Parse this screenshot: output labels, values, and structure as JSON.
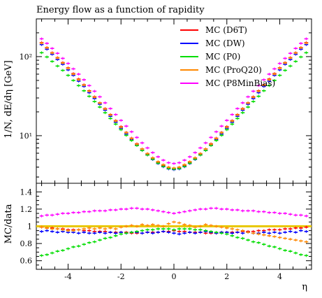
{
  "chart_data": {
    "type": "scatter",
    "title": "Energy flow as a function of rapidity",
    "xlabel": "η",
    "ylabel_top": "1/N, dE/dη [GeV]",
    "ylabel_bottom": "MC/data",
    "xlim": [
      -5.2,
      5.2
    ],
    "ylim_top": [
      2.5,
      300
    ],
    "yscale_top": "log",
    "ylim_bottom": [
      0.5,
      1.5
    ],
    "x_ticks": [
      -4,
      -2,
      0,
      2,
      4
    ],
    "x_tick_labels": [
      "-4",
      "-2",
      "0",
      "2",
      "4"
    ],
    "y_ticks_top": [
      10,
      100
    ],
    "y_tick_labels_top": [
      "10¹",
      "10²"
    ],
    "y_ticks_bottom": [
      0.6,
      0.8,
      1.0,
      1.2,
      1.4
    ],
    "y_tick_labels_bottom": [
      "0.6",
      "0.8",
      "1",
      "1.2",
      "1.4"
    ],
    "reference_line": 1.0,
    "bin_width": 0.2,
    "legend_position": "top-right",
    "series": [
      {
        "name": "MC (D6T)",
        "color": "#ff0000",
        "x": [
          -5.0,
          -4.8,
          -4.6,
          -4.4,
          -4.2,
          -4.0,
          -3.8,
          -3.6,
          -3.4,
          -3.2,
          -3.0,
          -2.8,
          -2.6,
          -2.4,
          -2.2,
          -2.0,
          -1.8,
          -1.6,
          -1.4,
          -1.2,
          -1.0,
          -0.8,
          -0.6,
          -0.4,
          -0.2,
          0.0,
          0.2,
          0.4,
          0.6,
          0.8,
          1.0,
          1.2,
          1.4,
          1.6,
          1.8,
          2.0,
          2.2,
          2.4,
          2.6,
          2.8,
          3.0,
          3.2,
          3.4,
          3.6,
          3.8,
          4.0,
          4.2,
          4.4,
          4.6,
          4.8,
          5.0
        ],
        "y": [
          150,
          130,
          112,
          97,
          84,
          72,
          61,
          52,
          44,
          37,
          31,
          26,
          22,
          18.5,
          15.5,
          13,
          11,
          9.3,
          7.9,
          6.8,
          5.9,
          5.2,
          4.6,
          4.2,
          3.95,
          3.85,
          3.95,
          4.2,
          4.6,
          5.2,
          5.9,
          6.8,
          7.9,
          9.3,
          11,
          13,
          15.5,
          18.5,
          22,
          26,
          31,
          37,
          44,
          52,
          61,
          72,
          84,
          97,
          112,
          130,
          150
        ],
        "ratio": [
          0.99,
          0.98,
          0.98,
          0.97,
          0.97,
          0.96,
          0.96,
          0.96,
          0.95,
          0.95,
          0.94,
          0.94,
          0.94,
          0.93,
          0.93,
          0.93,
          0.93,
          0.92,
          0.92,
          0.92,
          0.93,
          0.93,
          0.93,
          0.94,
          0.94,
          0.95,
          0.94,
          0.94,
          0.93,
          0.93,
          0.93,
          0.92,
          0.92,
          0.92,
          0.93,
          0.93,
          0.93,
          0.93,
          0.94,
          0.94,
          0.94,
          0.95,
          0.95,
          0.96,
          0.96,
          0.96,
          0.97,
          0.97,
          0.98,
          0.98,
          0.99
        ]
      },
      {
        "name": "MC (DW)",
        "color": "#0000ff",
        "x": [
          -5.0,
          -4.8,
          -4.6,
          -4.4,
          -4.2,
          -4.0,
          -3.8,
          -3.6,
          -3.4,
          -3.2,
          -3.0,
          -2.8,
          -2.6,
          -2.4,
          -2.2,
          -2.0,
          -1.8,
          -1.6,
          -1.4,
          -1.2,
          -1.0,
          -0.8,
          -0.6,
          -0.4,
          -0.2,
          0.0,
          0.2,
          0.4,
          0.6,
          0.8,
          1.0,
          1.2,
          1.4,
          1.6,
          1.8,
          2.0,
          2.2,
          2.4,
          2.6,
          2.8,
          3.0,
          3.2,
          3.4,
          3.6,
          3.8,
          4.0,
          4.2,
          4.4,
          4.6,
          4.8,
          5.0
        ],
        "y": [
          142,
          124,
          107,
          92,
          80,
          68,
          58,
          49,
          42,
          35,
          29.5,
          25,
          21,
          17.6,
          14.8,
          12.4,
          10.5,
          8.9,
          7.6,
          6.5,
          5.7,
          5.0,
          4.45,
          4.05,
          3.8,
          3.72,
          3.8,
          4.05,
          4.45,
          5.0,
          5.7,
          6.5,
          7.6,
          8.9,
          10.5,
          12.4,
          14.8,
          17.6,
          21,
          25,
          29.5,
          35,
          42,
          49,
          58,
          68,
          80,
          92,
          107,
          124,
          142
        ],
        "ratio": [
          0.94,
          0.95,
          0.94,
          0.93,
          0.94,
          0.93,
          0.93,
          0.92,
          0.93,
          0.92,
          0.92,
          0.93,
          0.92,
          0.93,
          0.92,
          0.93,
          0.92,
          0.93,
          0.93,
          0.92,
          0.93,
          0.92,
          0.93,
          0.94,
          0.93,
          0.92,
          0.91,
          0.92,
          0.93,
          0.92,
          0.93,
          0.94,
          0.93,
          0.92,
          0.93,
          0.93,
          0.92,
          0.93,
          0.92,
          0.93,
          0.92,
          0.92,
          0.93,
          0.92,
          0.93,
          0.92,
          0.93,
          0.94,
          0.93,
          0.95,
          0.94
        ]
      },
      {
        "name": "MC (P0)",
        "color": "#00dd00",
        "x": [
          -5.0,
          -4.8,
          -4.6,
          -4.4,
          -4.2,
          -4.0,
          -3.8,
          -3.6,
          -3.4,
          -3.2,
          -3.0,
          -2.8,
          -2.6,
          -2.4,
          -2.2,
          -2.0,
          -1.8,
          -1.6,
          -1.4,
          -1.2,
          -1.0,
          -0.8,
          -0.6,
          -0.4,
          -0.2,
          0.0,
          0.2,
          0.4,
          0.6,
          0.8,
          1.0,
          1.2,
          1.4,
          1.6,
          1.8,
          2.0,
          2.2,
          2.4,
          2.6,
          2.8,
          3.0,
          3.2,
          3.4,
          3.6,
          3.8,
          4.0,
          4.2,
          4.4,
          4.6,
          4.8,
          5.0
        ],
        "y": [
          112,
          99,
          87,
          76,
          67,
          58,
          50,
          43,
          37,
          31.5,
          27,
          23,
          19.5,
          16.5,
          14,
          11.9,
          10.1,
          8.7,
          7.5,
          6.5,
          5.7,
          5.05,
          4.5,
          4.1,
          3.85,
          3.78,
          3.85,
          4.1,
          4.5,
          5.05,
          5.7,
          6.5,
          7.5,
          8.7,
          10.1,
          11.9,
          14,
          16.5,
          19.5,
          23,
          27,
          31.5,
          37,
          43,
          50,
          58,
          67,
          76,
          87,
          99,
          112
        ],
        "ratio": [
          0.66,
          0.67,
          0.69,
          0.71,
          0.72,
          0.74,
          0.76,
          0.77,
          0.79,
          0.81,
          0.82,
          0.84,
          0.86,
          0.87,
          0.89,
          0.91,
          0.92,
          0.93,
          0.94,
          0.95,
          0.96,
          0.96,
          0.97,
          0.97,
          0.97,
          0.96,
          0.97,
          0.97,
          0.97,
          0.96,
          0.96,
          0.95,
          0.94,
          0.93,
          0.92,
          0.91,
          0.89,
          0.87,
          0.86,
          0.84,
          0.82,
          0.81,
          0.79,
          0.77,
          0.76,
          0.74,
          0.72,
          0.71,
          0.69,
          0.67,
          0.66
        ]
      },
      {
        "name": "MC (ProQ20)",
        "color": "#ff8800",
        "x": [
          -5.0,
          -4.8,
          -4.6,
          -4.4,
          -4.2,
          -4.0,
          -3.8,
          -3.6,
          -3.4,
          -3.2,
          -3.0,
          -2.8,
          -2.6,
          -2.4,
          -2.2,
          -2.0,
          -1.8,
          -1.6,
          -1.4,
          -1.2,
          -1.0,
          -0.8,
          -0.6,
          -0.4,
          -0.2,
          0.0,
          0.2,
          0.4,
          0.6,
          0.8,
          1.0,
          1.2,
          1.4,
          1.6,
          1.8,
          2.0,
          2.2,
          2.4,
          2.6,
          2.8,
          3.0,
          3.2,
          3.4,
          3.6,
          3.8,
          4.0,
          4.2,
          4.4,
          4.6,
          4.8,
          5.0
        ],
        "y": [
          148,
          129,
          111,
          96,
          83,
          71,
          60,
          51,
          43.5,
          36.5,
          30.5,
          25.8,
          21.7,
          18.3,
          15.3,
          12.8,
          10.9,
          9.2,
          7.8,
          6.8,
          5.95,
          5.25,
          4.7,
          4.3,
          4.0,
          3.9,
          4.0,
          4.3,
          4.7,
          5.25,
          5.95,
          6.8,
          7.8,
          9.2,
          10.9,
          12.8,
          15.3,
          18.3,
          21.7,
          25.8,
          30.5,
          36.5,
          43.5,
          51,
          60,
          71,
          83,
          96,
          111,
          129,
          148
        ],
        "ratio": [
          0.99,
          0.98,
          0.97,
          0.97,
          0.96,
          0.95,
          0.95,
          0.96,
          0.97,
          0.98,
          0.97,
          0.98,
          0.97,
          0.98,
          0.97,
          0.99,
          1.0,
          1.01,
          1.0,
          1.02,
          1.01,
          1.02,
          1.01,
          1.0,
          1.03,
          1.05,
          1.04,
          1.02,
          1.01,
          0.99,
          1.0,
          1.02,
          1.01,
          1.0,
          0.99,
          0.98,
          0.97,
          0.96,
          0.95,
          0.93,
          0.92,
          0.91,
          0.9,
          0.89,
          0.88,
          0.87,
          0.86,
          0.85,
          0.84,
          0.83,
          0.82
        ]
      },
      {
        "name": "MC (P8MinBias)",
        "color": "#ff00ff",
        "x": [
          -5.0,
          -4.8,
          -4.6,
          -4.4,
          -4.2,
          -4.0,
          -3.8,
          -3.6,
          -3.4,
          -3.2,
          -3.0,
          -2.8,
          -2.6,
          -2.4,
          -2.2,
          -2.0,
          -1.8,
          -1.6,
          -1.4,
          -1.2,
          -1.0,
          -0.8,
          -0.6,
          -0.4,
          -0.2,
          0.0,
          0.2,
          0.4,
          0.6,
          0.8,
          1.0,
          1.2,
          1.4,
          1.6,
          1.8,
          2.0,
          2.2,
          2.4,
          2.6,
          2.8,
          3.0,
          3.2,
          3.4,
          3.6,
          3.8,
          4.0,
          4.2,
          4.4,
          4.6,
          4.8,
          5.0
        ],
        "y": [
          168,
          147,
          127,
          110,
          95,
          82,
          70,
          60,
          51,
          43,
          36.5,
          31,
          26,
          22,
          18.5,
          15.6,
          13.2,
          11.2,
          9.5,
          8.1,
          7.0,
          6.1,
          5.4,
          4.9,
          4.55,
          4.45,
          4.55,
          4.9,
          5.4,
          6.1,
          7.0,
          8.1,
          9.5,
          11.2,
          13.2,
          15.6,
          18.5,
          22,
          26,
          31,
          36.5,
          43,
          51,
          60,
          70,
          82,
          95,
          110,
          127,
          147,
          168
        ],
        "ratio": [
          1.12,
          1.13,
          1.13,
          1.14,
          1.15,
          1.15,
          1.16,
          1.16,
          1.17,
          1.17,
          1.18,
          1.18,
          1.18,
          1.19,
          1.19,
          1.2,
          1.2,
          1.21,
          1.21,
          1.2,
          1.2,
          1.19,
          1.18,
          1.17,
          1.16,
          1.15,
          1.16,
          1.17,
          1.18,
          1.19,
          1.2,
          1.2,
          1.21,
          1.21,
          1.2,
          1.2,
          1.19,
          1.19,
          1.18,
          1.18,
          1.18,
          1.17,
          1.17,
          1.16,
          1.16,
          1.15,
          1.15,
          1.14,
          1.13,
          1.13,
          1.12
        ]
      }
    ]
  }
}
